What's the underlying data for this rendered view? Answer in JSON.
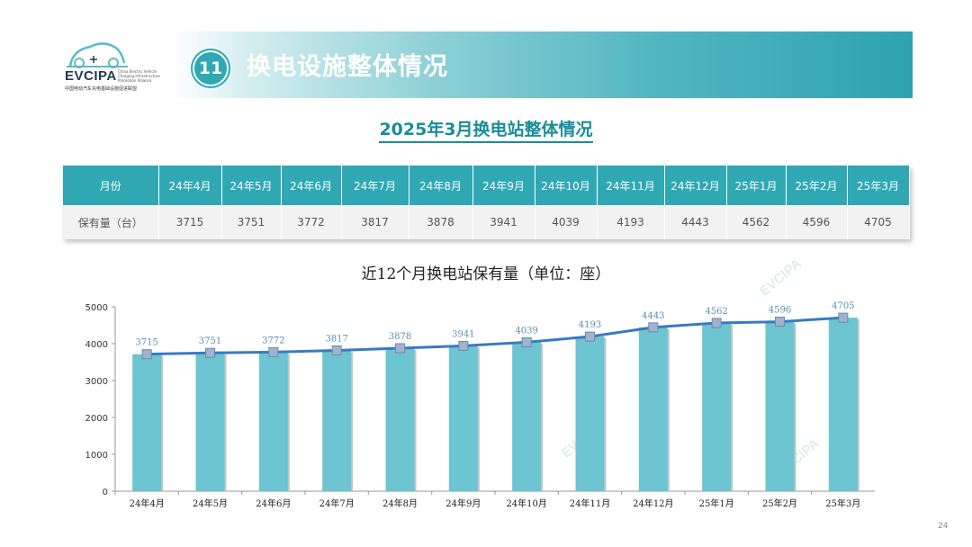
{
  "logo": {
    "word": "EVCIPA",
    "small_lines": [
      "China Electric Vehicle",
      "Charging Infrastructure",
      "Promotion Alliance"
    ],
    "cn": "中国电动汽车充电基础设施促进联盟"
  },
  "header": {
    "number": "11",
    "title": "换电设施整体情况"
  },
  "subtitle": "2025年3月换电站整体情况",
  "table": {
    "row_header_month": "月份",
    "row_header_value": "保有量（台）",
    "months": [
      "24年4月",
      "24年5月",
      "24年6月",
      "24年7月",
      "24年8月",
      "24年9月",
      "24年10月",
      "24年11月",
      "24年12月",
      "25年1月",
      "25年2月",
      "25年3月"
    ],
    "values": [
      "3715",
      "3751",
      "3772",
      "3817",
      "3878",
      "3941",
      "4039",
      "4193",
      "4443",
      "4562",
      "4596",
      "4705"
    ]
  },
  "chart_data": {
    "type": "bar",
    "title": "近12个月换电站保有量（单位：座）",
    "categories": [
      "24年4月",
      "24年5月",
      "24年6月",
      "24年7月",
      "24年8月",
      "24年9月",
      "24年10月",
      "24年11月",
      "24年12月",
      "25年1月",
      "25年2月",
      "25年3月"
    ],
    "values": [
      3715,
      3751,
      3772,
      3817,
      3878,
      3941,
      4039,
      4193,
      4443,
      4562,
      4596,
      4705
    ],
    "overlay_line": true,
    "ylim": [
      0,
      5000
    ],
    "yticks": [
      0,
      1000,
      2000,
      3000,
      4000,
      5000
    ],
    "grid": false,
    "colors": {
      "bar": "#6cc5d0",
      "line": "#3a7ac2",
      "marker": "#9fb4cc"
    }
  },
  "watermark": "EVCIPA",
  "page_number": "24"
}
